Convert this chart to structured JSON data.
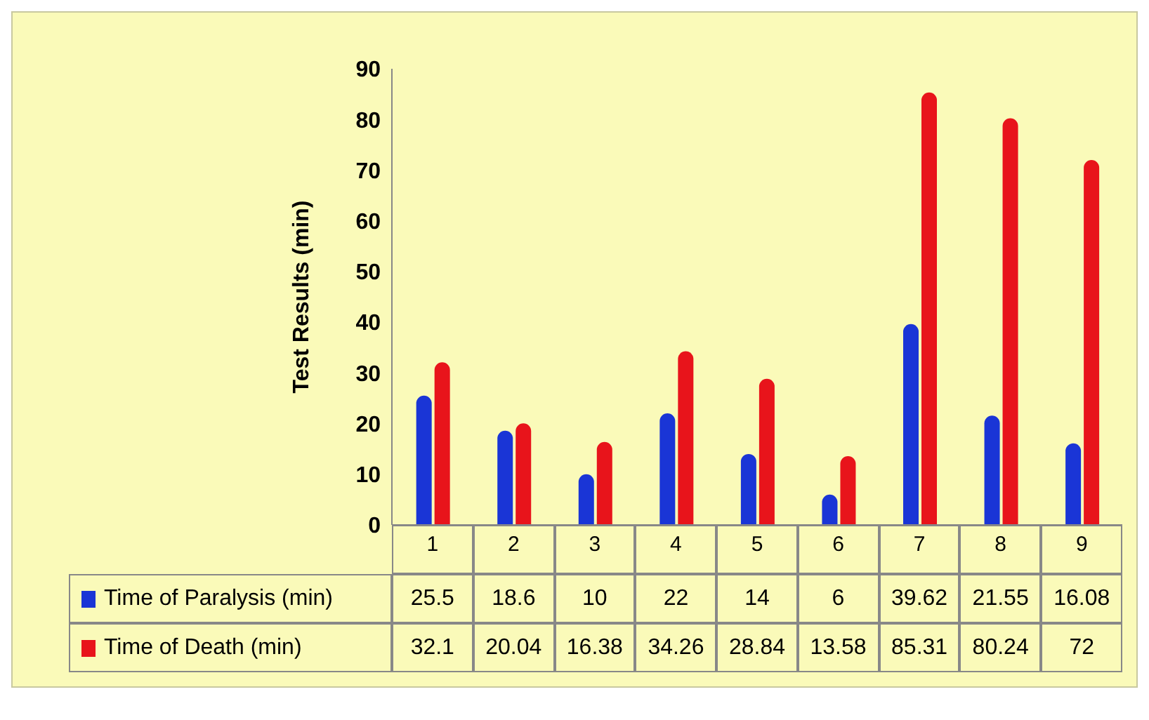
{
  "chart_data": {
    "type": "bar",
    "ylabel": "Test Results (min)",
    "categories": [
      "1",
      "2",
      "3",
      "4",
      "5",
      "6",
      "7",
      "8",
      "9"
    ],
    "series": [
      {
        "name": "Time of Paralysis (min)",
        "color": "#1a35d6",
        "values": [
          25.5,
          18.6,
          10,
          22,
          14,
          6,
          39.62,
          21.55,
          16.08
        ]
      },
      {
        "name": "Time of Death (min)",
        "color": "#e8141b",
        "values": [
          32.1,
          20.04,
          16.38,
          34.26,
          28.84,
          13.58,
          85.31,
          80.24,
          72
        ]
      }
    ],
    "ylim": [
      0,
      90
    ],
    "yticks": [
      0,
      10,
      20,
      30,
      40,
      50,
      60,
      70,
      80,
      90
    ],
    "grid": false,
    "legend": "bottom",
    "data_labels": true
  }
}
